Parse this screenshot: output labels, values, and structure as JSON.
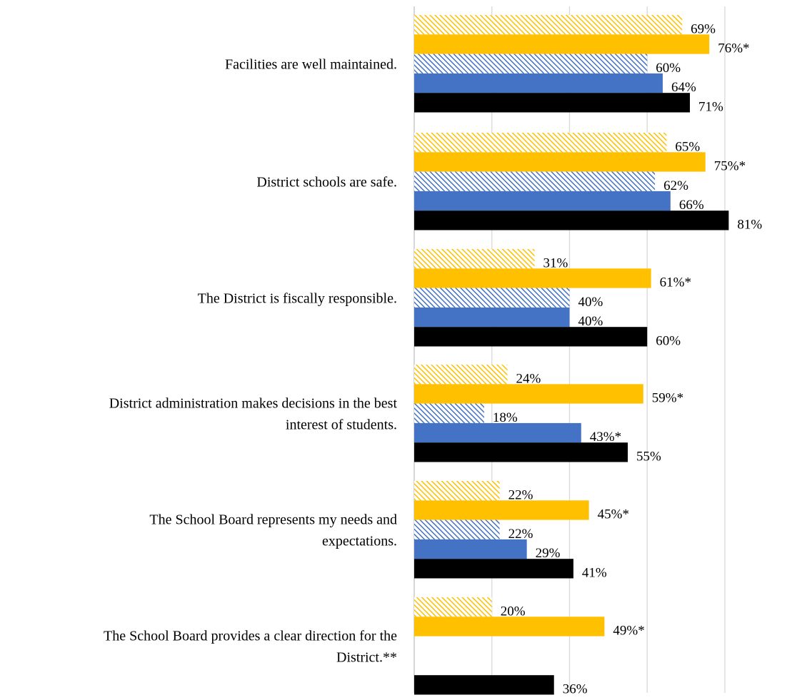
{
  "chart_data": {
    "type": "bar",
    "orientation": "horizontal",
    "title": "",
    "xlabel": "",
    "ylabel": "",
    "xlim": [
      0,
      90
    ],
    "grid": true,
    "legend": "none",
    "categories": [
      [
        "Facilities are well maintained."
      ],
      [
        "District schools are safe."
      ],
      [
        "The District is fiscally responsible."
      ],
      [
        "District administration makes decisions in the best",
        "interest of students."
      ],
      [
        "The School Board represents my needs and",
        "expectations."
      ],
      [
        "The School Board provides a clear direction for the",
        "District.**"
      ]
    ],
    "series": [
      {
        "color": "#FFC000",
        "pattern": "hatched",
        "values": [
          69,
          65,
          31,
          24,
          22,
          20
        ],
        "labels": [
          "69%",
          "65%",
          "31%",
          "24%",
          "22%",
          "20%"
        ]
      },
      {
        "color": "#FFC000",
        "pattern": "solid",
        "values": [
          76,
          75,
          61,
          59,
          45,
          49
        ],
        "labels": [
          "76%*",
          "75%*",
          "61%*",
          "59%*",
          "45%*",
          "49%*"
        ]
      },
      {
        "color": "#4472C4",
        "pattern": "hatched",
        "values": [
          60,
          62,
          40,
          18,
          22,
          null
        ],
        "labels": [
          "60%",
          "62%",
          "40%",
          "18%",
          "22%",
          null
        ]
      },
      {
        "color": "#4472C4",
        "pattern": "solid",
        "values": [
          64,
          66,
          40,
          43,
          29,
          null
        ],
        "labels": [
          "64%",
          "66%",
          "40%",
          "43%*",
          "29%",
          null
        ]
      },
      {
        "color": "#000000",
        "pattern": "solid",
        "values": [
          71,
          81,
          60,
          55,
          41,
          36
        ],
        "labels": [
          "71%",
          "81%",
          "60%",
          "55%",
          "41%",
          "36%"
        ]
      }
    ]
  }
}
